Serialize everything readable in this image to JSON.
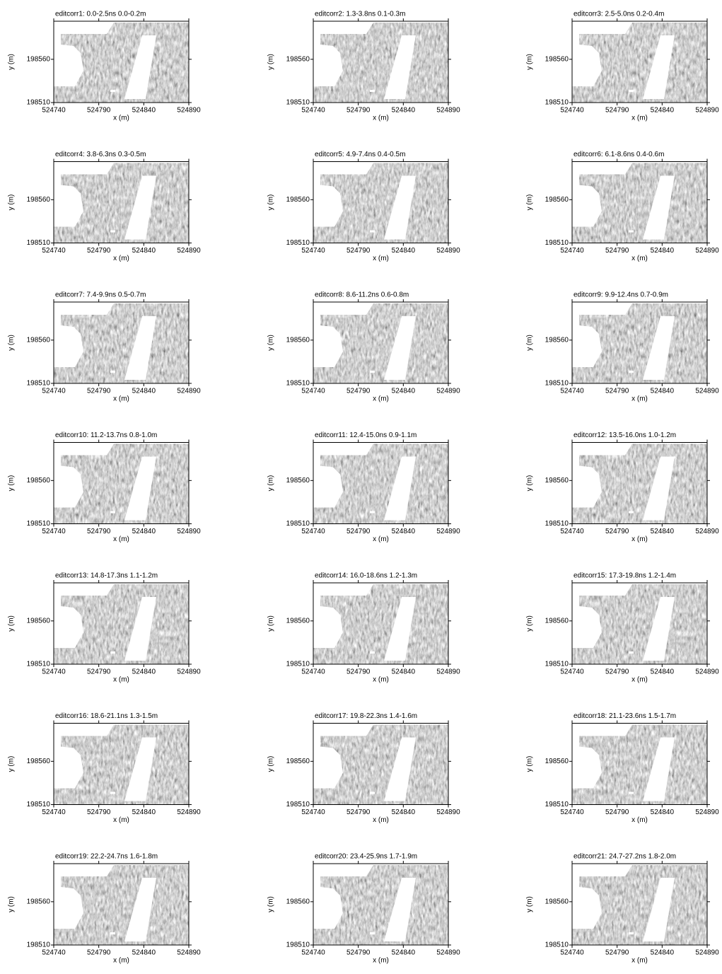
{
  "chart_data": [
    {
      "type": "image",
      "title": "editcorr1:  0.0-2.5ns  0.0-0.2m",
      "xlabel": "x (m)",
      "ylabel": "y (m)",
      "xlim": [
        524740,
        524890
      ],
      "ylim": [
        198510,
        198604
      ],
      "xticks": [
        524740,
        524790,
        524840,
        524890
      ],
      "yticks": [
        198510,
        198560
      ]
    },
    {
      "type": "image",
      "title": "editcorr2:  1.3-3.8ns  0.1-0.3m",
      "xlabel": "x (m)",
      "ylabel": "y (m)",
      "xlim": [
        524740,
        524890
      ],
      "ylim": [
        198510,
        198604
      ],
      "xticks": [
        524740,
        524790,
        524840,
        524890
      ],
      "yticks": [
        198510,
        198560
      ]
    },
    {
      "type": "image",
      "title": "editcorr3:  2.5-5.0ns  0.2-0.4m",
      "xlabel": "x (m)",
      "ylabel": "y (m)",
      "xlim": [
        524740,
        524890
      ],
      "ylim": [
        198510,
        198604
      ],
      "xticks": [
        524740,
        524790,
        524840,
        524890
      ],
      "yticks": [
        198510,
        198560
      ]
    },
    {
      "type": "image",
      "title": "editcorr4:  3.8-6.3ns  0.3-0.5m",
      "xlabel": "x (m)",
      "ylabel": "y (m)",
      "xlim": [
        524740,
        524890
      ],
      "ylim": [
        198510,
        198604
      ],
      "xticks": [
        524740,
        524790,
        524840,
        524890
      ],
      "yticks": [
        198510,
        198560
      ]
    },
    {
      "type": "image",
      "title": "editcorr5:  4.9-7.4ns  0.4-0.5m",
      "xlabel": "x (m)",
      "ylabel": "y (m)",
      "xlim": [
        524740,
        524890
      ],
      "ylim": [
        198510,
        198604
      ],
      "xticks": [
        524740,
        524790,
        524840,
        524890
      ],
      "yticks": [
        198510,
        198560
      ]
    },
    {
      "type": "image",
      "title": "editcorr6:  6.1-8.6ns  0.4-0.6m",
      "xlabel": "x (m)",
      "ylabel": "y (m)",
      "xlim": [
        524740,
        524890
      ],
      "ylim": [
        198510,
        198604
      ],
      "xticks": [
        524740,
        524790,
        524840,
        524890
      ],
      "yticks": [
        198510,
        198560
      ]
    },
    {
      "type": "image",
      "title": "editcorr7:  7.4-9.9ns  0.5-0.7m",
      "xlabel": "x (m)",
      "ylabel": "y (m)",
      "xlim": [
        524740,
        524890
      ],
      "ylim": [
        198510,
        198604
      ],
      "xticks": [
        524740,
        524790,
        524840,
        524890
      ],
      "yticks": [
        198510,
        198560
      ]
    },
    {
      "type": "image",
      "title": "editcorr8:  8.6-11.2ns  0.6-0.8m",
      "xlabel": "x (m)",
      "ylabel": "y (m)",
      "xlim": [
        524740,
        524890
      ],
      "ylim": [
        198510,
        198604
      ],
      "xticks": [
        524740,
        524790,
        524840,
        524890
      ],
      "yticks": [
        198510,
        198560
      ]
    },
    {
      "type": "image",
      "title": "editcorr9:  9.9-12.4ns  0.7-0.9m",
      "xlabel": "x (m)",
      "ylabel": "y (m)",
      "xlim": [
        524740,
        524890
      ],
      "ylim": [
        198510,
        198604
      ],
      "xticks": [
        524740,
        524790,
        524840,
        524890
      ],
      "yticks": [
        198510,
        198560
      ]
    },
    {
      "type": "image",
      "title": "editcorr10:  11.2-13.7ns  0.8-1.0m",
      "xlabel": "x (m)",
      "ylabel": "y (m)",
      "xlim": [
        524740,
        524890
      ],
      "ylim": [
        198510,
        198604
      ],
      "xticks": [
        524740,
        524790,
        524840,
        524890
      ],
      "yticks": [
        198510,
        198560
      ]
    },
    {
      "type": "image",
      "title": "editcorr11:  12.4-15.0ns  0.9-1.1m",
      "xlabel": "x (m)",
      "ylabel": "y (m)",
      "xlim": [
        524740,
        524890
      ],
      "ylim": [
        198510,
        198604
      ],
      "xticks": [
        524740,
        524790,
        524840,
        524890
      ],
      "yticks": [
        198510,
        198560
      ]
    },
    {
      "type": "image",
      "title": "editcorr12:  13.5-16.0ns  1.0-1.2m",
      "xlabel": "x (m)",
      "ylabel": "y (m)",
      "xlim": [
        524740,
        524890
      ],
      "ylim": [
        198510,
        198604
      ],
      "xticks": [
        524740,
        524790,
        524840,
        524890
      ],
      "yticks": [
        198510,
        198560
      ]
    },
    {
      "type": "image",
      "title": "editcorr13:  14.8-17.3ns  1.1-1.2m",
      "xlabel": "x (m)",
      "ylabel": "y (m)",
      "xlim": [
        524740,
        524890
      ],
      "ylim": [
        198510,
        198604
      ],
      "xticks": [
        524740,
        524790,
        524840,
        524890
      ],
      "yticks": [
        198510,
        198560
      ]
    },
    {
      "type": "image",
      "title": "editcorr14:  16.0-18.6ns  1.2-1.3m",
      "xlabel": "x (m)",
      "ylabel": "y (m)",
      "xlim": [
        524740,
        524890
      ],
      "ylim": [
        198510,
        198604
      ],
      "xticks": [
        524740,
        524790,
        524840,
        524890
      ],
      "yticks": [
        198510,
        198560
      ]
    },
    {
      "type": "image",
      "title": "editcorr15:  17.3-19.8ns  1.2-1.4m",
      "xlabel": "x (m)",
      "ylabel": "y (m)",
      "xlim": [
        524740,
        524890
      ],
      "ylim": [
        198510,
        198604
      ],
      "xticks": [
        524740,
        524790,
        524840,
        524890
      ],
      "yticks": [
        198510,
        198560
      ]
    },
    {
      "type": "image",
      "title": "editcorr16:  18.6-21.1ns  1.3-1.5m",
      "xlabel": "x (m)",
      "ylabel": "y (m)",
      "xlim": [
        524740,
        524890
      ],
      "ylim": [
        198510,
        198604
      ],
      "xticks": [
        524740,
        524790,
        524840,
        524890
      ],
      "yticks": [
        198510,
        198560
      ]
    },
    {
      "type": "image",
      "title": "editcorr17:  19.8-22.3ns  1.4-1.6m",
      "xlabel": "x (m)",
      "ylabel": "y (m)",
      "xlim": [
        524740,
        524890
      ],
      "ylim": [
        198510,
        198604
      ],
      "xticks": [
        524740,
        524790,
        524840,
        524890
      ],
      "yticks": [
        198510,
        198560
      ]
    },
    {
      "type": "image",
      "title": "editcorr18:  21.1-23.6ns  1.5-1.7m",
      "xlabel": "x (m)",
      "ylabel": "y (m)",
      "xlim": [
        524740,
        524890
      ],
      "ylim": [
        198510,
        198604
      ],
      "xticks": [
        524740,
        524790,
        524840,
        524890
      ],
      "yticks": [
        198510,
        198560
      ]
    },
    {
      "type": "image",
      "title": "editcorr19:  22.2-24.7ns  1.6-1.8m",
      "xlabel": "x (m)",
      "ylabel": "y (m)",
      "xlim": [
        524740,
        524890
      ],
      "ylim": [
        198510,
        198604
      ],
      "xticks": [
        524740,
        524790,
        524840,
        524890
      ],
      "yticks": [
        198510,
        198560
      ]
    },
    {
      "type": "image",
      "title": "editcorr20:  23.4-25.9ns  1.7-1.9m",
      "xlabel": "x (m)",
      "ylabel": "y (m)",
      "xlim": [
        524740,
        524890
      ],
      "ylim": [
        198510,
        198604
      ],
      "xticks": [
        524740,
        524790,
        524840,
        524890
      ],
      "yticks": [
        198510,
        198560
      ]
    },
    {
      "type": "image",
      "title": "editcorr21:  24.7-27.2ns  1.8-2.0m",
      "xlabel": "x (m)",
      "ylabel": "y (m)",
      "xlim": [
        524740,
        524890
      ],
      "ylim": [
        198510,
        198604
      ],
      "xticks": [
        524740,
        524790,
        524840,
        524890
      ],
      "yticks": [
        198510,
        198560
      ]
    }
  ]
}
